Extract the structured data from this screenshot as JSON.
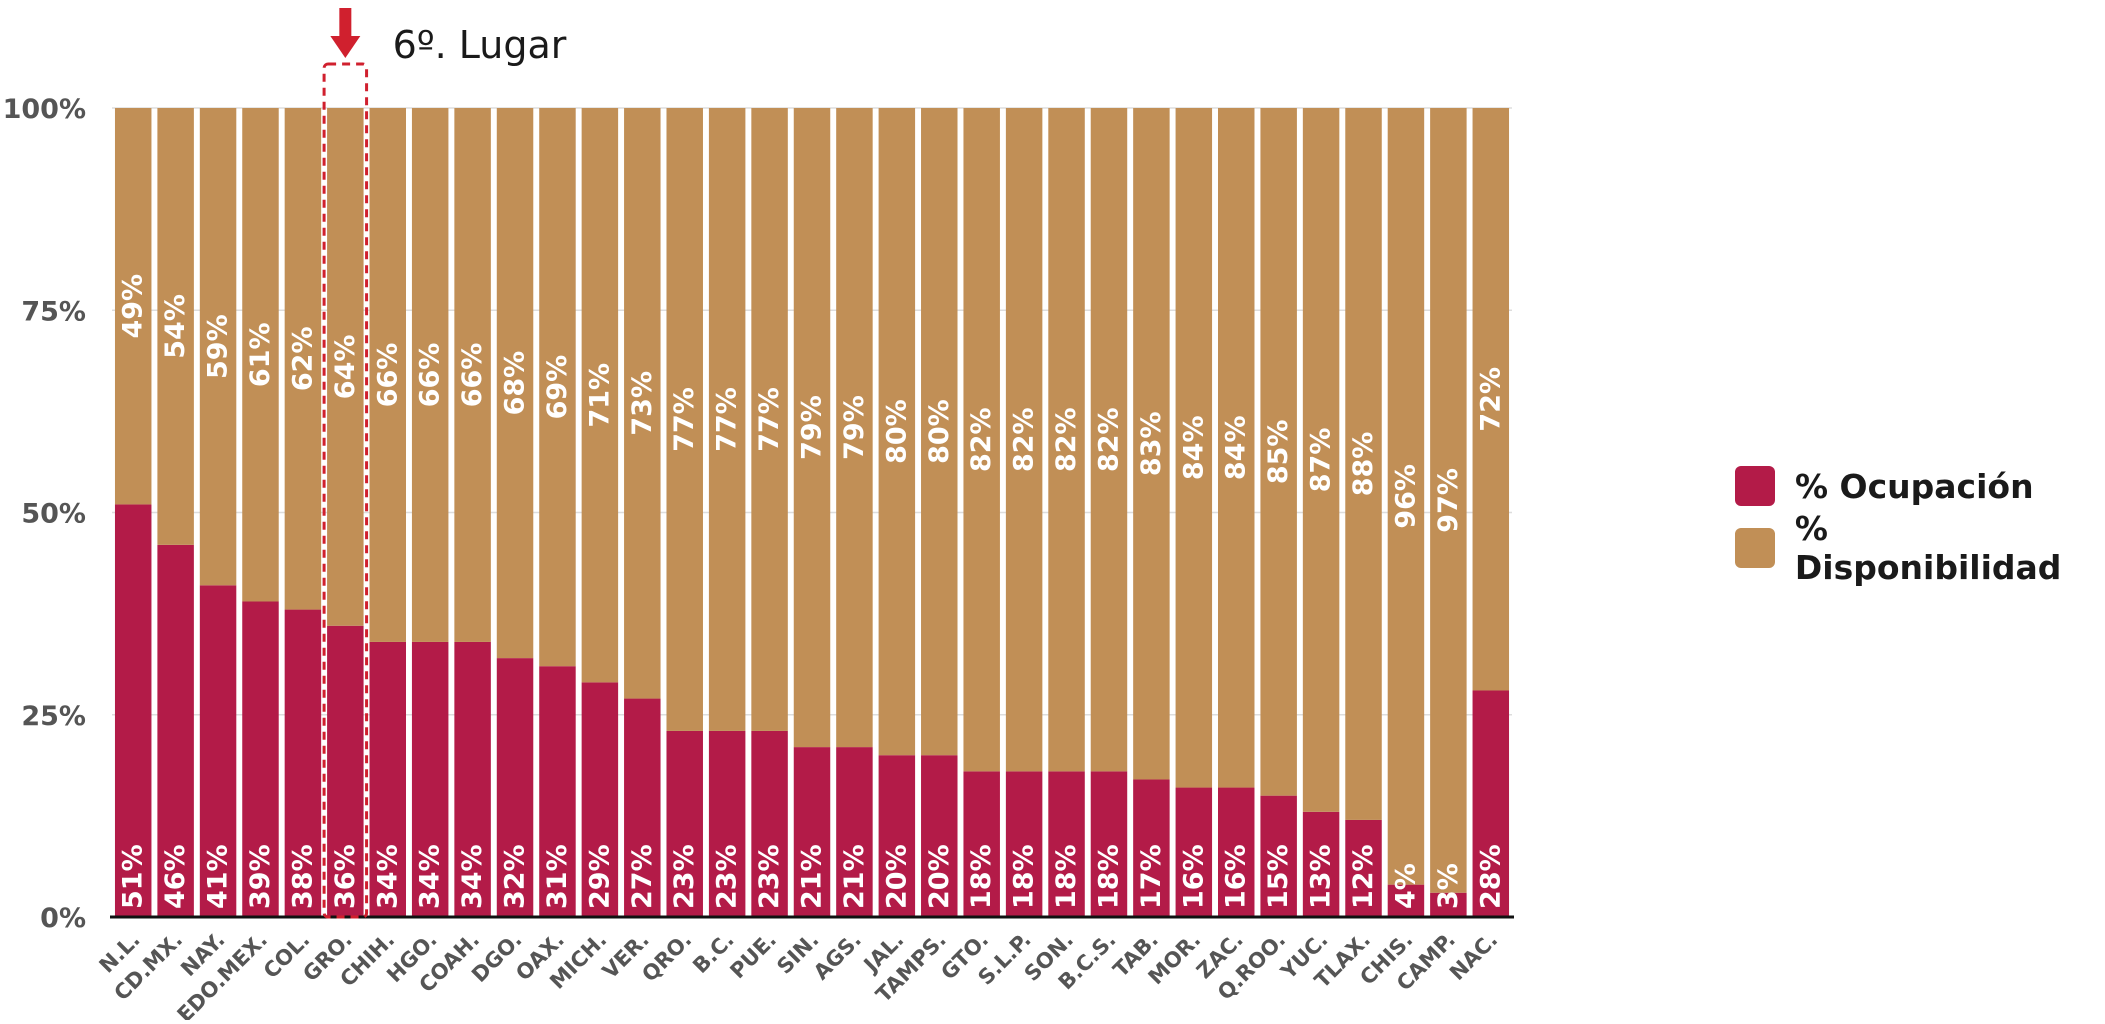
{
  "colors": {
    "ocupacion": "#B31B48",
    "disponibilidad": "#C18F56",
    "highlight": "#D0202E",
    "axis_text": "#555555",
    "bar_text": "#ffffff"
  },
  "annotation": {
    "label": "6º. Lugar",
    "highlight_category": "GRO."
  },
  "legend": {
    "ocupacion": "% Ocupación",
    "disponibilidad": "% Disponibilidad"
  },
  "chart_data": {
    "type": "bar",
    "stacked": true,
    "ylim": [
      0,
      100
    ],
    "yticks": [
      "0%",
      "25%",
      "50%",
      "75%",
      "100%"
    ],
    "grid": true,
    "legend_position": "right",
    "categories": [
      "N.L.",
      "CD.MX.",
      "NAY.",
      "EDO.MEX.",
      "COL.",
      "GRO.",
      "CHIH.",
      "HGO.",
      "COAH.",
      "DGO.",
      "OAX.",
      "MICH.",
      "VER.",
      "QRO.",
      "B.C.",
      "PUE.",
      "SIN.",
      "AGS.",
      "JAL.",
      "TAMPS.",
      "GTO.",
      "S.L.P.",
      "SON.",
      "B.C.S.",
      "TAB.",
      "MOR.",
      "ZAC.",
      "Q.ROO.",
      "YUC.",
      "TLAX.",
      "CHIS.",
      "CAMP.",
      "NAC."
    ],
    "series": [
      {
        "name": "% Ocupación",
        "values": [
          51,
          46,
          41,
          39,
          38,
          36,
          34,
          34,
          34,
          32,
          31,
          29,
          27,
          23,
          23,
          23,
          21,
          21,
          20,
          20,
          18,
          18,
          18,
          18,
          17,
          16,
          16,
          15,
          13,
          12,
          4,
          3,
          28
        ],
        "labels": [
          "51%",
          "46%",
          "41%",
          "39%",
          "38%",
          "36%",
          "34%",
          "34%",
          "34%",
          "32%",
          "31%",
          "29%",
          "27%",
          "23%",
          "23%",
          "23%",
          "21%",
          "21%",
          "20%",
          "20%",
          "18%",
          "18%",
          "18%",
          "18%",
          "17%",
          "16%",
          "16%",
          "15%",
          "13%",
          "12%",
          "4%",
          "3%",
          "28%"
        ]
      },
      {
        "name": "% Disponibilidad",
        "values": [
          49,
          54,
          59,
          61,
          62,
          64,
          66,
          66,
          66,
          68,
          69,
          71,
          73,
          77,
          77,
          77,
          79,
          79,
          80,
          80,
          82,
          82,
          82,
          82,
          83,
          84,
          84,
          85,
          87,
          88,
          96,
          97,
          72
        ],
        "labels": [
          "49%",
          "54%",
          "59%",
          "61%",
          "62%",
          "64%",
          "66%",
          "66%",
          "66%",
          "68%",
          "69%",
          "71%",
          "73%",
          "77%",
          "77%",
          "77%",
          "79%",
          "79%",
          "80%",
          "80%",
          "82%",
          "82%",
          "82%",
          "82%",
          "83%",
          "84%",
          "84%",
          "85%",
          "87%",
          "88%",
          "96%",
          "97%",
          "72%"
        ]
      }
    ]
  }
}
